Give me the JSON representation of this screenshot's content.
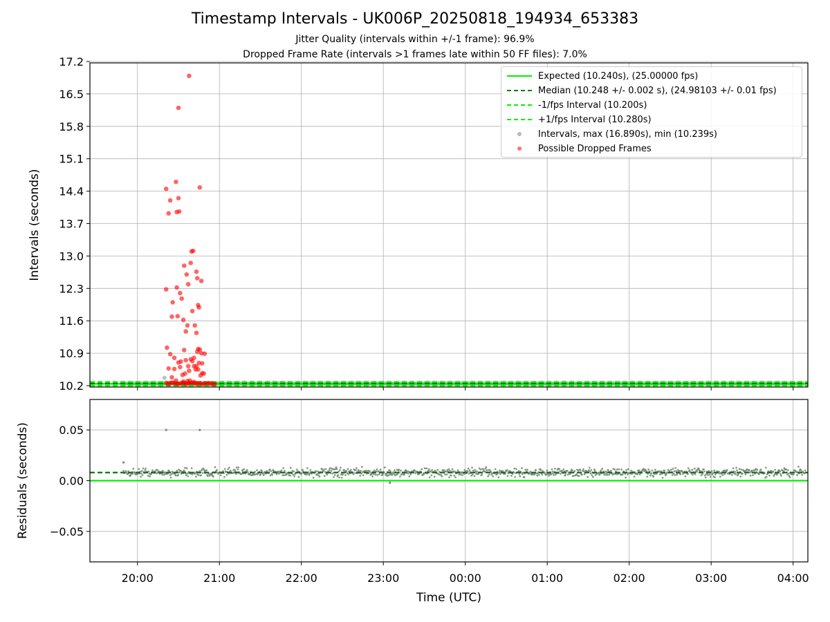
{
  "title": "Timestamp Intervals - UK006P_20250818_194934_653383",
  "subtitle_1": "Jitter Quality (intervals within +/-1 frame): 96.9%",
  "subtitle_2": "Dropped Frame Rate (intervals >1 frames late within 50 FF files): 7.0%",
  "colors": {
    "expected": "#00ee00",
    "median": "#007a00",
    "interval_bounds": "#00ee00",
    "intervals": "#808080",
    "dropped": "#ff0000",
    "grid": "#b0b0b0"
  },
  "legend": {
    "placement": "upper right",
    "entries": [
      {
        "label": "Expected (10.240s), (25.00000 fps)",
        "style": "solid",
        "color": "#00ee00"
      },
      {
        "label": "Median (10.248 +/- 0.002 s), (24.98103 +/- 0.01 fps)",
        "style": "dashed",
        "color": "#007a00"
      },
      {
        "label": "-1/fps Interval (10.200s)",
        "style": "dashed",
        "color": "#00ee00"
      },
      {
        "label": "+1/fps Interval (10.280s)",
        "style": "dashed",
        "color": "#00ee00"
      },
      {
        "label": "Intervals, max (16.890s), min (10.239s)",
        "style": "marker",
        "color": "#808080"
      },
      {
        "label": "Possible Dropped Frames",
        "style": "marker",
        "color": "#ff0000"
      }
    ]
  },
  "chart_data": [
    {
      "type": "scatter",
      "name": "intervals",
      "xlabel": "",
      "ylabel": "Intervals (seconds)",
      "x_unit": "hours since 00:00 UTC",
      "xlim": [
        -4.58,
        4.18
      ],
      "ylim": [
        10.2,
        17.2
      ],
      "yticks": [
        "10.2",
        "10.9",
        "11.6",
        "12.3",
        "13.0",
        "13.7",
        "14.4",
        "15.1",
        "15.8",
        "16.5",
        "17.2"
      ],
      "grid": true,
      "reference_lines": [
        {
          "name": "Expected",
          "y": 10.24,
          "style": "solid"
        },
        {
          "name": "Median",
          "y": 10.248,
          "style": "dashed"
        },
        {
          "name": "-1/fps Interval",
          "y": 10.2,
          "style": "dashed"
        },
        {
          "name": "+1/fps Interval",
          "y": 10.28,
          "style": "dashed"
        }
      ],
      "normal_intervals": {
        "x_range": [
          -4.17,
          4.15
        ],
        "spacing_hours": 0.0284,
        "y": 10.247
      },
      "dropped_baseline": {
        "x_range": [
          -3.65,
          -3.05
        ],
        "y": 10.25
      },
      "dropped_frames": [
        [
          -3.65,
          14.45
        ],
        [
          -3.6,
          14.2
        ],
        [
          -3.62,
          13.92
        ],
        [
          -3.53,
          14.6
        ],
        [
          -3.5,
          14.25
        ],
        [
          -3.49,
          13.96
        ],
        [
          -3.52,
          13.95
        ],
        [
          -3.37,
          16.89
        ],
        [
          -3.5,
          16.2
        ],
        [
          -3.24,
          14.48
        ],
        [
          -3.65,
          12.28
        ],
        [
          -3.57,
          12.0
        ],
        [
          -3.52,
          12.32
        ],
        [
          -3.48,
          12.2
        ],
        [
          -3.46,
          12.08
        ],
        [
          -3.43,
          12.79
        ],
        [
          -3.4,
          12.6
        ],
        [
          -3.38,
          12.39
        ],
        [
          -3.35,
          12.85
        ],
        [
          -3.34,
          13.1
        ],
        [
          -3.32,
          13.11
        ],
        [
          -3.28,
          12.66
        ],
        [
          -3.27,
          12.52
        ],
        [
          -3.26,
          11.94
        ],
        [
          -3.22,
          12.46
        ],
        [
          -3.58,
          11.69
        ],
        [
          -3.51,
          11.7
        ],
        [
          -3.44,
          11.62
        ],
        [
          -3.41,
          11.37
        ],
        [
          -3.39,
          11.5
        ],
        [
          -3.33,
          11.81
        ],
        [
          -3.25,
          11.89
        ],
        [
          -3.3,
          11.5
        ],
        [
          -3.28,
          11.34
        ],
        [
          -3.64,
          11.02
        ],
        [
          -3.6,
          10.88
        ],
        [
          -3.55,
          10.8
        ],
        [
          -3.5,
          10.7
        ],
        [
          -3.47,
          10.72
        ],
        [
          -3.43,
          10.97
        ],
        [
          -3.41,
          10.75
        ],
        [
          -3.38,
          10.62
        ],
        [
          -3.35,
          10.77
        ],
        [
          -3.33,
          10.73
        ],
        [
          -3.31,
          10.8
        ],
        [
          -3.29,
          10.55
        ],
        [
          -3.27,
          10.93
        ],
        [
          -3.25,
          10.69
        ],
        [
          -3.22,
          10.9
        ],
        [
          -3.18,
          10.89
        ],
        [
          -3.21,
          10.68
        ],
        [
          -3.62,
          10.57
        ],
        [
          -3.55,
          10.56
        ],
        [
          -3.48,
          10.6
        ],
        [
          -3.45,
          10.43
        ],
        [
          -3.42,
          10.46
        ],
        [
          -3.37,
          10.52
        ],
        [
          -3.31,
          10.62
        ],
        [
          -3.28,
          10.62
        ],
        [
          -3.26,
          10.55
        ],
        [
          -3.23,
          10.42
        ],
        [
          -3.21,
          10.47
        ],
        [
          -3.19,
          10.46
        ],
        [
          -3.58,
          10.38
        ],
        [
          -3.53,
          10.31
        ],
        [
          -3.44,
          10.29
        ],
        [
          -3.39,
          10.3
        ],
        [
          -3.36,
          10.31
        ],
        [
          -3.31,
          10.28
        ],
        [
          -3.26,
          10.99
        ],
        [
          -3.24,
          10.98
        ]
      ]
    },
    {
      "type": "scatter",
      "name": "residuals",
      "xlabel": "Time (UTC)",
      "ylabel": "Residuals (seconds)",
      "x_unit": "hours since 00:00 UTC",
      "xlim": [
        -4.58,
        4.18
      ],
      "ylim": [
        -0.08,
        0.08
      ],
      "yticks": [
        "0.05",
        "0.00",
        "−0.05"
      ],
      "xticks": [
        "20:00",
        "21:00",
        "22:00",
        "23:00",
        "00:00",
        "01:00",
        "02:00",
        "03:00",
        "04:00"
      ],
      "xtick_values": [
        -4,
        -3,
        -2,
        -1,
        0,
        1,
        2,
        3,
        4
      ],
      "grid": true,
      "reference_lines": [
        {
          "name": "Expected",
          "y": 0.0,
          "style": "solid"
        },
        {
          "name": "Median",
          "y": 0.008,
          "style": "dashed"
        }
      ],
      "residual_band": {
        "x_range": [
          -4.17,
          4.15
        ],
        "mean": 0.008,
        "spread": 0.003
      },
      "outliers": [
        [
          -4.17,
          0.018
        ],
        [
          -3.65,
          0.05
        ],
        [
          -3.24,
          0.05
        ],
        [
          -0.92,
          -0.002
        ]
      ]
    }
  ]
}
